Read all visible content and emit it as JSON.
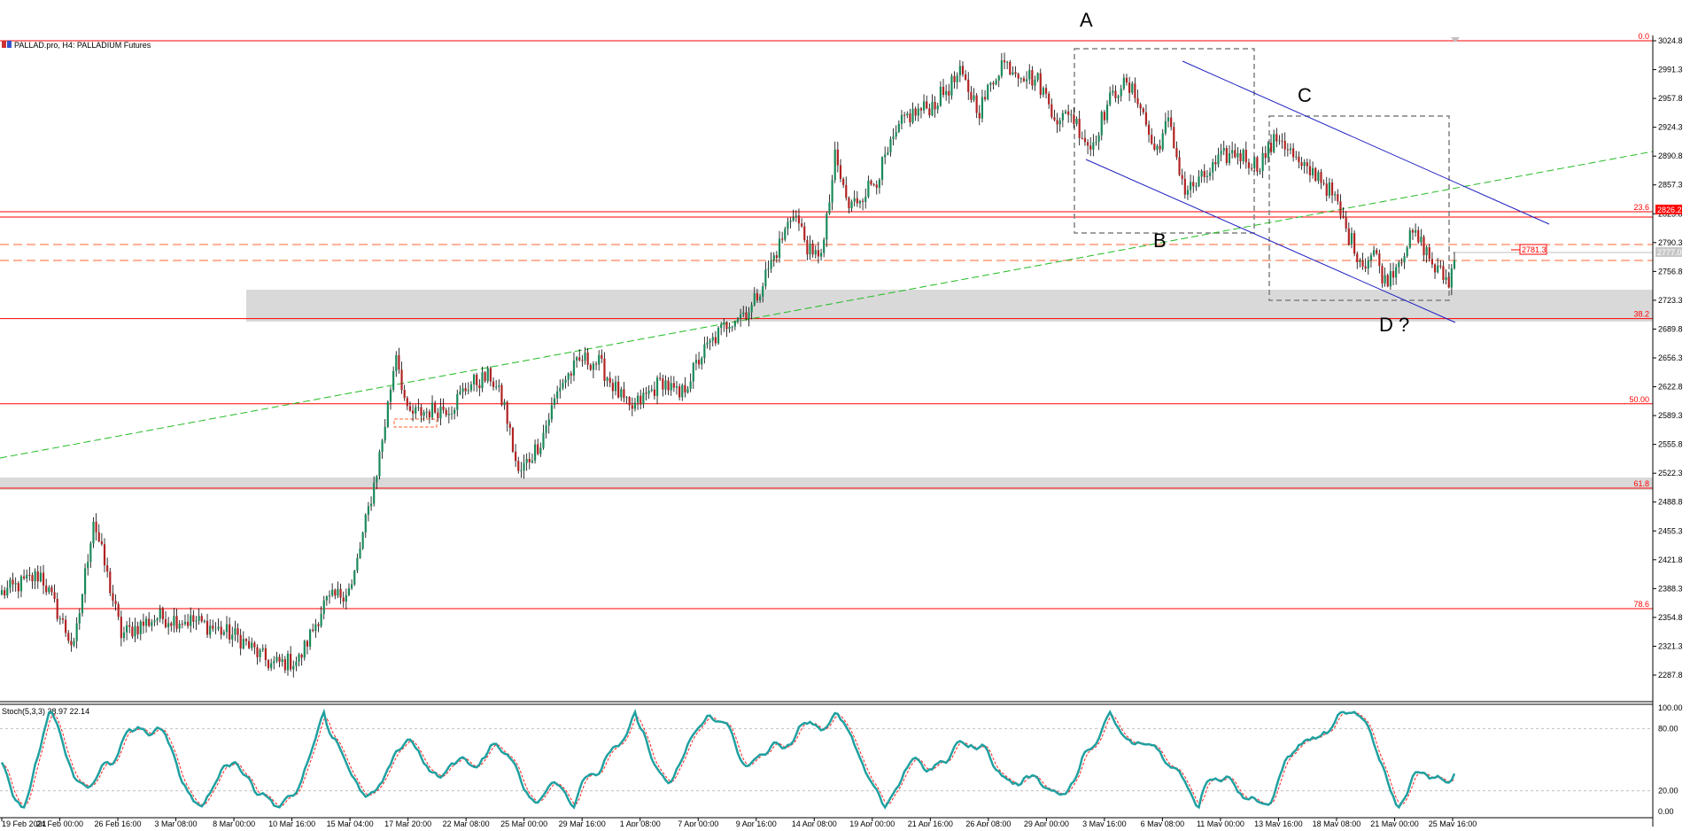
{
  "header": {
    "symbol_title": "PALLAD.pro, H4:  PALLADIUM Futures"
  },
  "chart_data": [
    {
      "type": "candlestick",
      "title": "PALLAD.pro, H4:  PALLADIUM Futures",
      "ylim": [
        2254,
        3041
      ],
      "y_ticks": [
        "3024.8",
        "2991.3",
        "2957.8",
        "2924.3",
        "2890.8",
        "2857.3",
        "2823.8",
        "2790.3",
        "2756.8",
        "2723.3",
        "2689.8",
        "2656.3",
        "2622.8",
        "2589.3",
        "2555.8",
        "2522.3",
        "2488.8",
        "2455.3",
        "2421.8",
        "2388.3",
        "2354.8",
        "2321.3",
        "2287.8"
      ],
      "x_ticks": [
        "19 Feb 2021",
        "24 Feb 00:00",
        "26 Feb 16:00",
        "3 Mar 08:00",
        "8 Mar 00:00",
        "10 Mar 16:00",
        "15 Mar 04:00",
        "17 Mar 20:00",
        "22 Mar 08:00",
        "25 Mar 00:00",
        "29 Mar 16:00",
        "1 Apr 08:00",
        "7 Apr 00:00",
        "9 Apr 16:00",
        "14 Apr 08:00",
        "19 Apr 00:00",
        "21 Apr 16:00",
        "26 Apr 08:00",
        "29 Apr 00:00",
        "3 May 16:00",
        "6 May 08:00",
        "11 May 00:00",
        "13 May 16:00",
        "18 May 08:00",
        "21 May 00:00",
        "25 May 16:00"
      ],
      "candle_colors": {
        "up": "#1a8a5a",
        "down": "#b22222",
        "wick": "#000000"
      },
      "anchors": [
        [
          0,
          2383
        ],
        [
          14,
          2405
        ],
        [
          26,
          2318
        ],
        [
          33,
          2470
        ],
        [
          43,
          2335
        ],
        [
          56,
          2355
        ],
        [
          70,
          2350
        ],
        [
          85,
          2332
        ],
        [
          97,
          2300
        ],
        [
          107,
          2305
        ],
        [
          116,
          2370
        ],
        [
          126,
          2390
        ],
        [
          135,
          2525
        ],
        [
          138,
          2580
        ],
        [
          142,
          2665
        ],
        [
          146,
          2590
        ],
        [
          154,
          2595
        ],
        [
          162,
          2600
        ],
        [
          168,
          2625
        ],
        [
          176,
          2635
        ],
        [
          181,
          2600
        ],
        [
          186,
          2520
        ],
        [
          194,
          2560
        ],
        [
          201,
          2625
        ],
        [
          209,
          2655
        ],
        [
          215,
          2650
        ],
        [
          226,
          2595
        ],
        [
          238,
          2630
        ],
        [
          244,
          2610
        ],
        [
          252,
          2660
        ],
        [
          262,
          2700
        ],
        [
          270,
          2715
        ],
        [
          276,
          2760
        ],
        [
          281,
          2795
        ],
        [
          285,
          2828
        ],
        [
          292,
          2770
        ],
        [
          296,
          2790
        ],
        [
          300,
          2888
        ],
        [
          305,
          2830
        ],
        [
          315,
          2865
        ],
        [
          325,
          2935
        ],
        [
          335,
          2950
        ],
        [
          345,
          2985
        ],
        [
          352,
          2945
        ],
        [
          360,
          3000
        ],
        [
          373,
          2978
        ],
        [
          381,
          2928
        ],
        [
          384,
          2945
        ],
        [
          392,
          2900
        ],
        [
          398,
          2950
        ],
        [
          403,
          2975
        ],
        [
          409,
          2960
        ],
        [
          415,
          2895
        ],
        [
          420,
          2930
        ],
        [
          426,
          2850
        ],
        [
          431,
          2860
        ],
        [
          440,
          2890
        ],
        [
          445,
          2895
        ],
        [
          452,
          2880
        ],
        [
          460,
          2915
        ],
        [
          468,
          2875
        ],
        [
          474,
          2870
        ],
        [
          480,
          2840
        ],
        [
          484,
          2805
        ],
        [
          490,
          2765
        ],
        [
          494,
          2780
        ],
        [
          498,
          2745
        ],
        [
          502,
          2765
        ],
        [
          508,
          2800
        ],
        [
          512,
          2785
        ],
        [
          516,
          2760
        ],
        [
          521,
          2745
        ],
        [
          523,
          2770
        ]
      ],
      "total_candles": 524
    },
    {
      "type": "line",
      "title": "Stoch(5,3,3) 38.97 22.14",
      "ylim": [
        0,
        100
      ],
      "y_ticks": [
        "100.00",
        "80.00",
        "20.00",
        "0.00"
      ],
      "levels": [
        80,
        20
      ],
      "series": [
        {
          "name": "main",
          "color": "#20a0a0"
        },
        {
          "name": "signal",
          "color": "#ff2020"
        }
      ]
    }
  ],
  "fib_levels": [
    {
      "label": "0.0",
      "price": 3024.8
    },
    {
      "label": "23.6",
      "price": 2826.2
    },
    {
      "label": "38.2",
      "price": 2702
    },
    {
      "label": "50.00",
      "price": 2603
    },
    {
      "label": "61.8",
      "price": 2505
    },
    {
      "label": "78.6",
      "price": 2365
    }
  ],
  "price_tags": {
    "fib_tag": "2826.2",
    "last_price": "2777.0",
    "alert": "2781.3"
  },
  "pattern_labels": {
    "A": "A",
    "B": "B",
    "C": "C",
    "D": "D ?"
  },
  "colors": {
    "fib_line": "#ff0000",
    "channel": "#2020c0",
    "trendline": "#22bb22",
    "zone": "#d9d9d9",
    "box": "#808080",
    "dashed_level": "#ff6633"
  }
}
